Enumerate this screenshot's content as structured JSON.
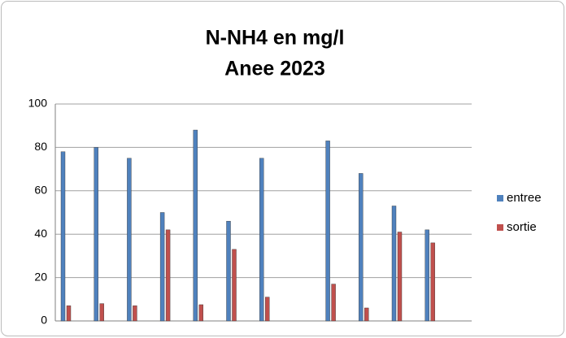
{
  "chart_data": {
    "type": "bar",
    "title": [
      "N-NH4 en mg/l",
      "Anee 2023"
    ],
    "categories": [
      null,
      null,
      null,
      null,
      null,
      null,
      null,
      null,
      null,
      null,
      null,
      null
    ],
    "series": [
      {
        "name": "entree",
        "color": "#4f81bd",
        "values": [
          78,
          80,
          75,
          50,
          88,
          46,
          75,
          null,
          83,
          68,
          53,
          42
        ]
      },
      {
        "name": "sortie",
        "color": "#c0504d",
        "values": [
          7,
          8,
          7,
          42,
          7.5,
          33,
          11,
          null,
          17,
          6,
          41,
          36
        ]
      }
    ],
    "ylim": [
      0,
      100
    ],
    "yticks": [
      0,
      20,
      40,
      60,
      80,
      100
    ],
    "grid": true,
    "legend": "right"
  }
}
